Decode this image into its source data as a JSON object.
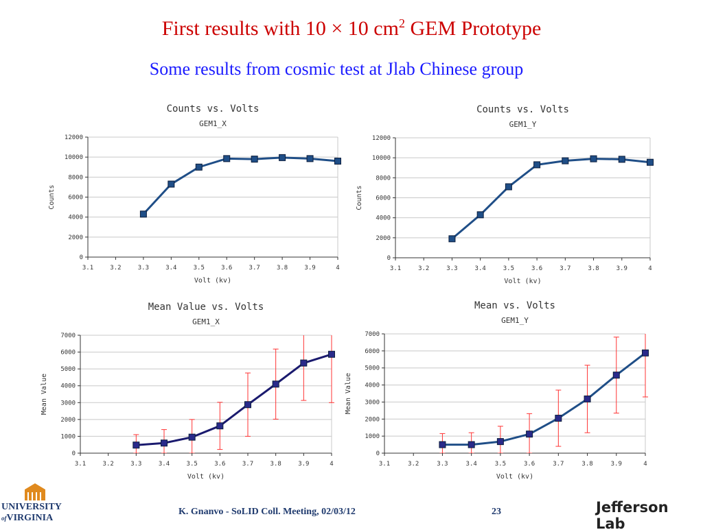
{
  "slide": {
    "title_main": "First results with 10 × 10 cm",
    "title_sup": "2",
    "title_tail": " GEM Prototype",
    "subtitle": "Some results from cosmic test at Jlab Chinese group"
  },
  "footer": {
    "text": "K. Gnanvo  -  SoLID Coll. Meeting, 02/03/12",
    "page": "23",
    "uva_line1": "UNIVERSITY",
    "uva_line2": "VIRGINIA",
    "uva_of": "of",
    "jlab": "Jefferson Lab"
  },
  "colors": {
    "title": "#cc0000",
    "subtitle": "#1a1aff",
    "line": "#1f4e87",
    "line_mean_x": "#1a1a6e",
    "marker": "#1f4e87",
    "error": "#ff3333",
    "grid": "#c8c8c8"
  },
  "chart_data": [
    {
      "type": "line",
      "title": "Counts vs. Volts",
      "subtitle": "GEM1_X",
      "xlabel": "Volt (kv)",
      "ylabel": "Counts",
      "xlim": [
        3.1,
        4.0
      ],
      "ylim": [
        0,
        12000
      ],
      "xticks": [
        "3.1",
        "3.2",
        "3.3",
        "3.4",
        "3.5",
        "3.6",
        "3.7",
        "3.8",
        "3.9",
        "4"
      ],
      "yticks": [
        "0",
        "2000",
        "4000",
        "6000",
        "8000",
        "10000",
        "12000"
      ],
      "grid": "horizontal",
      "x": [
        3.3,
        3.4,
        3.5,
        3.6,
        3.7,
        3.8,
        3.9,
        4.0
      ],
      "values": [
        4300,
        7300,
        9000,
        9850,
        9800,
        9950,
        9850,
        9600
      ]
    },
    {
      "type": "line",
      "title": "Counts vs. Volts",
      "subtitle": "GEM1_Y",
      "xlabel": "Volt (kv)",
      "ylabel": "Counts",
      "xlim": [
        3.1,
        4.0
      ],
      "ylim": [
        0,
        12000
      ],
      "xticks": [
        "3.1",
        "3.2",
        "3.3",
        "3.4",
        "3.5",
        "3.6",
        "3.7",
        "3.8",
        "3.9",
        "4"
      ],
      "yticks": [
        "0",
        "2000",
        "4000",
        "6000",
        "8000",
        "10000",
        "12000"
      ],
      "grid": "horizontal",
      "x": [
        3.3,
        3.4,
        3.5,
        3.6,
        3.7,
        3.8,
        3.9,
        4.0
      ],
      "values": [
        1900,
        4300,
        7100,
        9300,
        9700,
        9900,
        9850,
        9550
      ]
    },
    {
      "type": "line",
      "title": "Mean Value vs. Volts",
      "subtitle": "GEM1_X",
      "xlabel": "Volt (kv)",
      "ylabel": "Mean Value",
      "xlim": [
        3.1,
        4.0
      ],
      "ylim": [
        0,
        7000
      ],
      "xticks": [
        "3.1",
        "3.2",
        "3.3",
        "3.4",
        "3.5",
        "3.6",
        "3.7",
        "3.8",
        "3.9",
        "4"
      ],
      "yticks": [
        "0",
        "1000",
        "2000",
        "3000",
        "4000",
        "5000",
        "6000",
        "7000"
      ],
      "grid": "horizontal",
      "x": [
        3.3,
        3.4,
        3.5,
        3.6,
        3.7,
        3.8,
        3.9,
        4.0
      ],
      "values": [
        480,
        600,
        950,
        1620,
        2880,
        4100,
        5350,
        5870
      ],
      "error": [
        620,
        800,
        1050,
        1400,
        1880,
        2080,
        2220,
        2870
      ]
    },
    {
      "type": "line",
      "title": "Mean vs. Volts",
      "subtitle": "GEM1_Y",
      "xlabel": "Volt (kv)",
      "ylabel": "Mean Value",
      "xlim": [
        3.1,
        4.0
      ],
      "ylim": [
        0,
        7000
      ],
      "xticks": [
        "3.1",
        "3.2",
        "3.3",
        "3.4",
        "3.5",
        "3.6",
        "3.7",
        "3.8",
        "3.9",
        "4"
      ],
      "yticks": [
        "0",
        "1000",
        "2000",
        "3000",
        "4000",
        "5000",
        "6000",
        "7000"
      ],
      "grid": "horizontal",
      "x": [
        3.3,
        3.4,
        3.5,
        3.6,
        3.7,
        3.8,
        3.9,
        4.0
      ],
      "values": [
        500,
        500,
        680,
        1120,
        2050,
        3180,
        4580,
        5880
      ],
      "error": [
        650,
        700,
        900,
        1200,
        1650,
        1980,
        2230,
        2580
      ]
    }
  ]
}
